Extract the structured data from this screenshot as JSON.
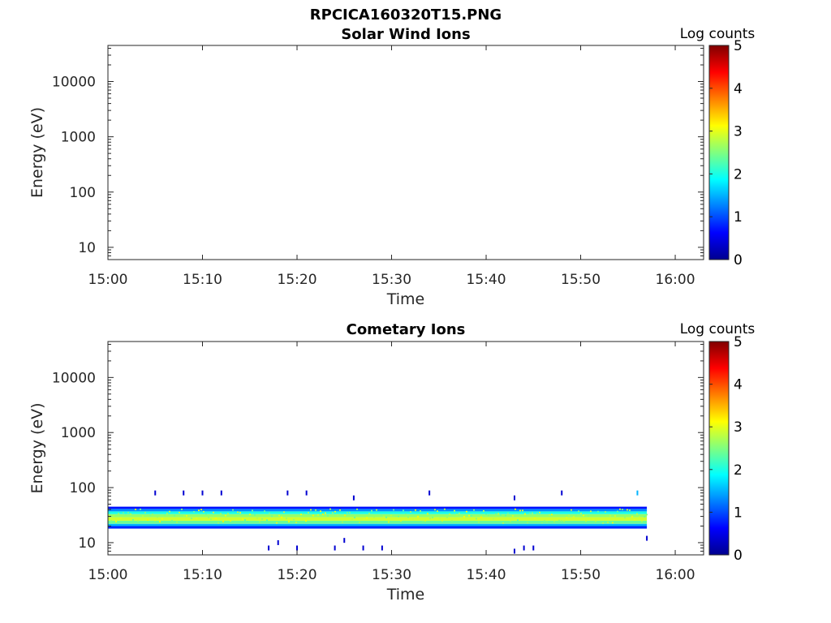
{
  "figure_title": "RPCICA160320T15.PNG",
  "colors": {
    "axes": "#262626",
    "background": "#ffffff"
  },
  "chart_data": [
    {
      "type": "heatmap",
      "title": "Solar Wind Ions",
      "xlabel": "Time",
      "ylabel": "Energy (eV)",
      "x_ticks": [
        "15:00",
        "15:10",
        "15:20",
        "15:30",
        "15:40",
        "15:50",
        "16:00"
      ],
      "y_ticks": [
        "10",
        "100",
        "1000",
        "10000"
      ],
      "y_scale": "log",
      "xlim": [
        "15:00",
        "16:03"
      ],
      "ylim": [
        6,
        45000
      ],
      "colorbar": {
        "label": "Log counts",
        "ticks": [
          "0",
          "1",
          "2",
          "3",
          "4",
          "5"
        ],
        "range": [
          0,
          5
        ],
        "colormap": "jet"
      },
      "data": []
    },
    {
      "type": "heatmap",
      "title": "Cometary Ions",
      "xlabel": "Time",
      "ylabel": "Energy (eV)",
      "x_ticks": [
        "15:00",
        "15:10",
        "15:20",
        "15:30",
        "15:40",
        "15:50",
        "16:00"
      ],
      "y_ticks": [
        "10",
        "100",
        "1000",
        "10000"
      ],
      "y_scale": "log",
      "xlim": [
        "15:00",
        "16:03"
      ],
      "ylim": [
        6,
        45000
      ],
      "colorbar": {
        "label": "Log counts",
        "ticks": [
          "0",
          "1",
          "2",
          "3",
          "4",
          "5"
        ],
        "range": [
          0,
          5
        ],
        "colormap": "jet"
      },
      "data": {
        "time_start": "15:00",
        "time_end": "15:57",
        "energy_layers": [
          {
            "energy_low": 18,
            "energy_high": 20,
            "log_counts": 0.8
          },
          {
            "energy_low": 20,
            "energy_high": 22,
            "log_counts": 1.5
          },
          {
            "energy_low": 22,
            "energy_high": 25,
            "log_counts": 2.4
          },
          {
            "energy_low": 25,
            "energy_high": 29,
            "log_counts": 2.9
          },
          {
            "energy_low": 29,
            "energy_high": 33,
            "log_counts": 2.6
          },
          {
            "energy_low": 33,
            "energy_high": 37,
            "log_counts": 2.0
          },
          {
            "energy_low": 37,
            "energy_high": 41,
            "log_counts": 1.3
          },
          {
            "energy_low": 41,
            "energy_high": 45,
            "log_counts": 0.7
          }
        ],
        "scattered_points": [
          {
            "time": "15:05",
            "energy": 80,
            "log_counts": 0.4
          },
          {
            "time": "15:08",
            "energy": 80,
            "log_counts": 0.4
          },
          {
            "time": "15:10",
            "energy": 80,
            "log_counts": 0.4
          },
          {
            "time": "15:12",
            "energy": 80,
            "log_counts": 0.4
          },
          {
            "time": "15:19",
            "energy": 80,
            "log_counts": 0.4
          },
          {
            "time": "15:21",
            "energy": 80,
            "log_counts": 0.4
          },
          {
            "time": "15:26",
            "energy": 65,
            "log_counts": 0.4
          },
          {
            "time": "15:34",
            "energy": 80,
            "log_counts": 0.4
          },
          {
            "time": "15:43",
            "energy": 65,
            "log_counts": 0.4
          },
          {
            "time": "15:48",
            "energy": 80,
            "log_counts": 0.4
          },
          {
            "time": "15:56",
            "energy": 80,
            "log_counts": 1.5
          },
          {
            "time": "15:17",
            "energy": 8,
            "log_counts": 0.4
          },
          {
            "time": "15:18",
            "energy": 10,
            "log_counts": 0.4
          },
          {
            "time": "15:20",
            "energy": 8,
            "log_counts": 0.4
          },
          {
            "time": "15:24",
            "energy": 8,
            "log_counts": 0.4
          },
          {
            "time": "15:25",
            "energy": 11,
            "log_counts": 0.4
          },
          {
            "time": "15:27",
            "energy": 8,
            "log_counts": 0.4
          },
          {
            "time": "15:29",
            "energy": 8,
            "log_counts": 0.4
          },
          {
            "time": "15:43",
            "energy": 7,
            "log_counts": 0.4
          },
          {
            "time": "15:44",
            "energy": 8,
            "log_counts": 0.4
          },
          {
            "time": "15:45",
            "energy": 8,
            "log_counts": 0.4
          },
          {
            "time": "15:57",
            "energy": 12,
            "log_counts": 0.4
          }
        ]
      }
    }
  ]
}
